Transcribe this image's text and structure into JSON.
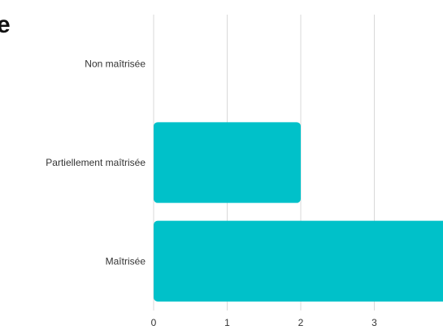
{
  "title_fragment": "e",
  "colors": {
    "bar": "#00c1c9",
    "grid": "#d9d9d9",
    "text": "#333333"
  },
  "chart_data": {
    "type": "bar",
    "orientation": "horizontal",
    "categories": [
      "Non maîtrisée",
      "Partiellement maîtrisée",
      "Maîtrisée"
    ],
    "values": [
      0,
      2,
      4
    ],
    "x_ticks": [
      "0",
      "1",
      "2",
      "3"
    ],
    "xlim": [
      0,
      4
    ],
    "grid": true,
    "legend": "none",
    "title": "",
    "xlabel": "",
    "ylabel": ""
  }
}
